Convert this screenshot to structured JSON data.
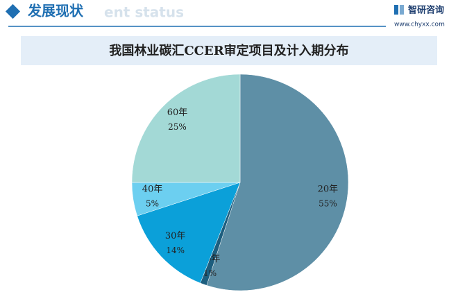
{
  "header": {
    "title": "发展现状",
    "watermark": "ent status",
    "logo": "智研咨询",
    "website": "www.chyxx.com"
  },
  "chart_data": {
    "type": "pie",
    "title": "我国林业碳汇CCER审定项目及计入期分布",
    "categories": [
      "20年",
      "26年",
      "30年",
      "40年",
      "60年"
    ],
    "values": [
      55,
      1,
      14,
      5,
      25
    ],
    "value_labels": [
      "55%",
      "1%",
      "14%",
      "5%",
      "25%"
    ],
    "colors": [
      "#5e8fa6",
      "#1d5e7e",
      "#0ba0d9",
      "#6ccff0",
      "#a3d9d6"
    ]
  }
}
